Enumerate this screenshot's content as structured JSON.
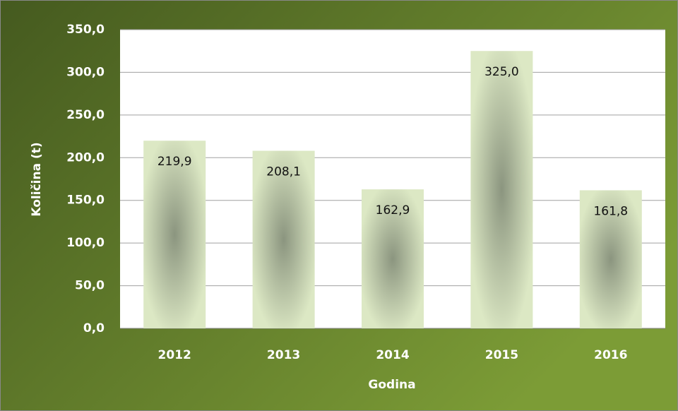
{
  "chart_data": {
    "type": "bar",
    "x_label": "Godina",
    "y_label": "Količina (t)",
    "categories": [
      "2012",
      "2013",
      "2014",
      "2015",
      "2016"
    ],
    "values": [
      219.9,
      208.1,
      162.9,
      325.0,
      161.8
    ],
    "value_labels": [
      "219,9",
      "208,1",
      "162,9",
      "325,0",
      "161,8"
    ],
    "ylim": [
      0,
      350
    ],
    "yticks": [
      {
        "value": 0,
        "label": "0,0"
      },
      {
        "value": 50,
        "label": "50,0"
      },
      {
        "value": 100,
        "label": "100,0"
      },
      {
        "value": 150,
        "label": "150,0"
      },
      {
        "value": 200,
        "label": "200,0"
      },
      {
        "value": 250,
        "label": "250,0"
      },
      {
        "value": 300,
        "label": "300,0"
      },
      {
        "value": 350,
        "label": "350,0"
      }
    ],
    "grid": true
  }
}
